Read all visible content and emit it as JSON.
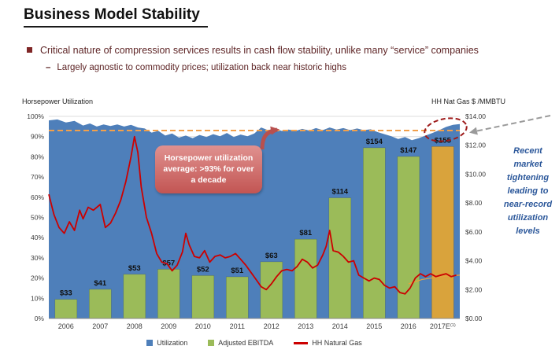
{
  "slide": {
    "title": "Business Model Stability",
    "bullet": "Critical nature of compression services results in cash flow stability, unlike many “service” companies",
    "sub_bullet": "Largely agnostic to commodity prices; utilization back near historic highs",
    "sub_bullet_marker": "–"
  },
  "chart": {
    "left_axis_title": "Horsepower Utilization",
    "right_axis_title": "HH Nat Gas $ /MMBTU",
    "left_ticks": [
      "0%",
      "10%",
      "20%",
      "30%",
      "40%",
      "50%",
      "60%",
      "70%",
      "80%",
      "90%",
      "100%"
    ],
    "right_ticks": [
      "$0.00",
      "$2.00",
      "$4.00",
      "$6.00",
      "$8.00",
      "$10.00",
      "$12.00",
      "$14.00"
    ],
    "callout_text": "Horsepower utilization average: >93% for over a decade",
    "annotation_text": "Recent market tightening leading to near-record utilization levels",
    "legend": [
      {
        "label": "Utilization",
        "color": "#4e7fba",
        "marker": "square"
      },
      {
        "label": "Adjusted EBITDA",
        "color": "#9bbb59",
        "marker": "square"
      },
      {
        "label": "HH Natural Gas",
        "color": "#cc0000",
        "marker": "line"
      }
    ]
  },
  "colors": {
    "utilization_blue": "#4e7fba",
    "ebitda_green": "#9bbb59",
    "ebitda_2017_gold": "#d9a33c",
    "gas_red": "#cc0000",
    "avg_line_orange": "#f2a04b",
    "callout_red": "#c25553",
    "annotation_blue": "#2b579a",
    "highlight_circle_red": "#9e1b1b",
    "bullet_maroon": "#5e2526"
  },
  "chart_data": {
    "type": "combo: area (utilization %) + bar (adjusted EBITDA $M) + line (HH natural gas $/MMBTU)",
    "categories": [
      "2006",
      "2007",
      "2008",
      "2009",
      "2010",
      "2011",
      "2012",
      "2013",
      "2014",
      "2015",
      "2016",
      "2017E"
    ],
    "footnote_marker": "(1)",
    "left_axis": {
      "label": "Horsepower Utilization",
      "range": [
        0,
        100
      ],
      "format": "percent",
      "tick_step": 10
    },
    "right_axis": {
      "label": "HH Nat Gas $ /MMBTU",
      "range": [
        0,
        14
      ],
      "format": "dollars",
      "tick_step": 2
    },
    "reference_line": {
      "name": "utilization average",
      "value_pct": 93,
      "style": "dashed",
      "color": "#f2a04b"
    },
    "legend_position": "bottom",
    "grid": "horizontal",
    "series": [
      {
        "name": "Utilization",
        "type": "area",
        "unit": "%",
        "points": [
          [
            0,
            98
          ],
          [
            0.25,
            98.5
          ],
          [
            0.5,
            97
          ],
          [
            0.75,
            97.8
          ],
          [
            1,
            95.5
          ],
          [
            1.2,
            96.5
          ],
          [
            1.4,
            95
          ],
          [
            1.6,
            96
          ],
          [
            1.8,
            95.2
          ],
          [
            2,
            96
          ],
          [
            2.2,
            95
          ],
          [
            2.4,
            95.8
          ],
          [
            2.6,
            94.5
          ],
          [
            2.8,
            94
          ],
          [
            3,
            92
          ],
          [
            3.2,
            92.8
          ],
          [
            3.4,
            90.5
          ],
          [
            3.6,
            91.5
          ],
          [
            3.8,
            89.5
          ],
          [
            4,
            90.5
          ],
          [
            4.2,
            89.2
          ],
          [
            4.4,
            90.8
          ],
          [
            4.6,
            89.8
          ],
          [
            4.8,
            91.2
          ],
          [
            5,
            90.2
          ],
          [
            5.2,
            91.8
          ],
          [
            5.4,
            89.8
          ],
          [
            5.6,
            91
          ],
          [
            5.8,
            90.2
          ],
          [
            6,
            91.5
          ],
          [
            6.2,
            94.5
          ],
          [
            6.4,
            93.2
          ],
          [
            6.6,
            94
          ],
          [
            6.8,
            92.8
          ],
          [
            7,
            93.5
          ],
          [
            7.2,
            92.8
          ],
          [
            7.4,
            93.8
          ],
          [
            7.6,
            93
          ],
          [
            7.8,
            94.2
          ],
          [
            8,
            93.2
          ],
          [
            8.2,
            94.5
          ],
          [
            8.4,
            93.5
          ],
          [
            8.6,
            94.2
          ],
          [
            8.8,
            93.2
          ],
          [
            9,
            94
          ],
          [
            9.2,
            93.2
          ],
          [
            9.4,
            93.6
          ],
          [
            9.6,
            92.2
          ],
          [
            9.8,
            91.2
          ],
          [
            10,
            90.2
          ],
          [
            10.2,
            88.8
          ],
          [
            10.4,
            89.8
          ],
          [
            10.6,
            88.2
          ],
          [
            10.8,
            89.2
          ],
          [
            11,
            90.5
          ],
          [
            11.2,
            91.8
          ],
          [
            11.4,
            93.2
          ],
          [
            11.6,
            94.8
          ],
          [
            11.8,
            95.8
          ],
          [
            12,
            96.2
          ]
        ]
      },
      {
        "name": "Adjusted EBITDA",
        "type": "bar",
        "unit": "$M",
        "values": [
          33,
          41,
          53,
          57,
          52,
          51,
          63,
          81,
          114,
          154,
          147,
          155
        ],
        "labels": [
          "$33",
          "$41",
          "$53",
          "$57",
          "$52",
          "$51",
          "$63",
          "$81",
          "$114",
          "$154",
          "$147",
          "$155"
        ],
        "final_bar_highlight": "gold (2017E estimate)"
      },
      {
        "name": "HH Natural Gas",
        "type": "line",
        "unit": "$/MMBTU",
        "points": [
          [
            0,
            8.6
          ],
          [
            0.15,
            7.2
          ],
          [
            0.3,
            6.3
          ],
          [
            0.45,
            5.9
          ],
          [
            0.6,
            6.7
          ],
          [
            0.75,
            6.1
          ],
          [
            0.9,
            7.5
          ],
          [
            1,
            6.9
          ],
          [
            1.15,
            7.7
          ],
          [
            1.3,
            7.5
          ],
          [
            1.5,
            7.9
          ],
          [
            1.65,
            6.3
          ],
          [
            1.8,
            6.6
          ],
          [
            1.95,
            7.3
          ],
          [
            2.1,
            8.2
          ],
          [
            2.25,
            9.5
          ],
          [
            2.4,
            11.2
          ],
          [
            2.5,
            12.6
          ],
          [
            2.6,
            11.5
          ],
          [
            2.7,
            9.1
          ],
          [
            2.85,
            7.0
          ],
          [
            3,
            5.9
          ],
          [
            3.15,
            4.5
          ],
          [
            3.3,
            3.9
          ],
          [
            3.45,
            3.8
          ],
          [
            3.6,
            3.3
          ],
          [
            3.75,
            3.7
          ],
          [
            3.9,
            4.6
          ],
          [
            4,
            5.9
          ],
          [
            4.1,
            5.1
          ],
          [
            4.25,
            4.3
          ],
          [
            4.4,
            4.2
          ],
          [
            4.55,
            4.7
          ],
          [
            4.7,
            3.9
          ],
          [
            4.85,
            4.3
          ],
          [
            5,
            4.4
          ],
          [
            5.15,
            4.2
          ],
          [
            5.3,
            4.3
          ],
          [
            5.45,
            4.5
          ],
          [
            5.6,
            4.1
          ],
          [
            5.75,
            3.7
          ],
          [
            5.9,
            3.2
          ],
          [
            6.05,
            2.7
          ],
          [
            6.2,
            2.2
          ],
          [
            6.35,
            2.0
          ],
          [
            6.5,
            2.4
          ],
          [
            6.65,
            2.9
          ],
          [
            6.8,
            3.3
          ],
          [
            6.95,
            3.4
          ],
          [
            7.1,
            3.3
          ],
          [
            7.25,
            3.6
          ],
          [
            7.4,
            4.1
          ],
          [
            7.55,
            3.9
          ],
          [
            7.7,
            3.5
          ],
          [
            7.85,
            3.7
          ],
          [
            8,
            4.4
          ],
          [
            8.1,
            5.0
          ],
          [
            8.2,
            6.1
          ],
          [
            8.3,
            4.7
          ],
          [
            8.45,
            4.6
          ],
          [
            8.6,
            4.3
          ],
          [
            8.75,
            3.9
          ],
          [
            8.9,
            4.0
          ],
          [
            9.05,
            3.0
          ],
          [
            9.2,
            2.8
          ],
          [
            9.35,
            2.6
          ],
          [
            9.5,
            2.8
          ],
          [
            9.65,
            2.7
          ],
          [
            9.8,
            2.3
          ],
          [
            9.95,
            2.1
          ],
          [
            10.1,
            2.2
          ],
          [
            10.25,
            1.8
          ],
          [
            10.4,
            1.7
          ],
          [
            10.55,
            2.1
          ],
          [
            10.7,
            2.8
          ],
          [
            10.85,
            3.1
          ],
          [
            11,
            2.9
          ],
          [
            11.15,
            3.1
          ],
          [
            11.3,
            2.9
          ],
          [
            11.45,
            3.0
          ],
          [
            11.6,
            3.1
          ],
          [
            11.75,
            2.9
          ],
          [
            11.9,
            3.0
          ]
        ]
      },
      {
        "name": "HH Natural Gas (forward)",
        "type": "line",
        "unit": "$/MMBTU",
        "points": [
          [
            10.5,
            2.4
          ],
          [
            10.9,
            2.7
          ],
          [
            11.3,
            2.85
          ],
          [
            11.7,
            2.95
          ],
          [
            12,
            3.0
          ]
        ]
      }
    ]
  }
}
